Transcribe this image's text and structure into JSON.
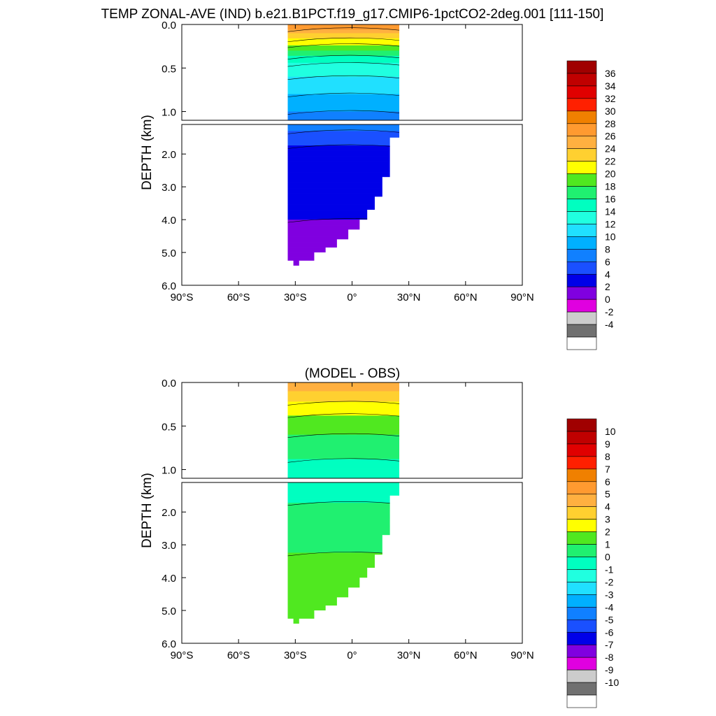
{
  "title": "TEMP ZONAL-AVE (IND) b.e21.B1PCT.f19_g17.CMIP6-1pctCO2-2deg.001 [111-150]",
  "chart_data": [
    {
      "type": "heatmap",
      "title": "TEMP ZONAL-AVE (IND) b.e21.B1PCT.f19_g17.CMIP6-1pctCO2-2deg.001 [111-150]",
      "ylabel": "DEPTH (km)",
      "xlabel": "",
      "x_ticks": [
        "90°S",
        "60°S",
        "30°S",
        "0°",
        "30°N",
        "60°N",
        "90°N"
      ],
      "y_ticks_upper": [
        "0.0",
        "0.5",
        "1.0"
      ],
      "y_ticks_lower": [
        "2.0",
        "3.0",
        "4.0",
        "5.0",
        "6.0"
      ],
      "xlim": [
        -90,
        90
      ],
      "ylim_km": [
        6.0,
        0.0
      ],
      "upper_panel_depth_km": [
        0.0,
        1.1
      ],
      "data_lat_range": [
        -34,
        25
      ],
      "ocean_max_depth_km": 5.4,
      "colorbar_labels": [
        "36",
        "34",
        "32",
        "30",
        "28",
        "26",
        "24",
        "22",
        "20",
        "18",
        "16",
        "14",
        "12",
        "10",
        "8",
        "6",
        "4",
        "2",
        "0",
        "-2",
        "-4"
      ],
      "colorbar_colors": [
        "#a00000",
        "#c00000",
        "#e00000",
        "#ff2000",
        "#f08000",
        "#ff9a30",
        "#ffb040",
        "#ffd030",
        "#ffff00",
        "#50e820",
        "#20f070",
        "#00ffc0",
        "#20ffe0",
        "#20e0ff",
        "#00b0ff",
        "#1080ff",
        "#1a50ff",
        "#0000e8",
        "#8000e0",
        "#e000e0",
        "#cccccc",
        "#707070",
        "#ffffff"
      ],
      "depth_temp_profile": {
        "depth_km": [
          0.0,
          0.05,
          0.1,
          0.2,
          0.3,
          0.4,
          0.5,
          0.7,
          0.9,
          1.1,
          1.5,
          2.0,
          3.0,
          4.0,
          5.0,
          5.4
        ],
        "temp_C": [
          28,
          26,
          24,
          21,
          18,
          15,
          13,
          11,
          9,
          7,
          5,
          3,
          2.5,
          2,
          1.5,
          1.5
        ]
      }
    },
    {
      "type": "heatmap",
      "title": "(MODEL - OBS)",
      "ylabel": "DEPTH (km)",
      "xlabel": "",
      "x_ticks": [
        "90°S",
        "60°S",
        "30°S",
        "0°",
        "30°N",
        "60°N",
        "90°N"
      ],
      "y_ticks_upper": [
        "0.0",
        "0.5",
        "1.0"
      ],
      "y_ticks_lower": [
        "2.0",
        "3.0",
        "4.0",
        "5.0",
        "6.0"
      ],
      "xlim": [
        -90,
        90
      ],
      "ylim_km": [
        6.0,
        0.0
      ],
      "upper_panel_depth_km": [
        0.0,
        1.1
      ],
      "data_lat_range": [
        -34,
        25
      ],
      "ocean_max_depth_km": 5.4,
      "colorbar_labels": [
        "10",
        "9",
        "8",
        "7",
        "6",
        "5",
        "4",
        "3",
        "2",
        "1",
        "0",
        "-1",
        "-2",
        "-3",
        "-4",
        "-5",
        "-6",
        "-7",
        "-8",
        "-9",
        "-10"
      ],
      "colorbar_colors": [
        "#a00000",
        "#c00000",
        "#e00000",
        "#ff2000",
        "#f08000",
        "#ff9a30",
        "#ffb040",
        "#ffd030",
        "#ffff00",
        "#50e820",
        "#20f070",
        "#00ffc0",
        "#20ffe0",
        "#20e0ff",
        "#00b0ff",
        "#1080ff",
        "#1a50ff",
        "#0000e8",
        "#8000e0",
        "#e000e0",
        "#cccccc",
        "#707070",
        "#ffffff"
      ],
      "depth_diff_profile": {
        "depth_km": [
          0.0,
          0.1,
          0.2,
          0.3,
          0.4,
          0.6,
          0.8,
          1.1,
          1.5,
          2.0,
          2.5,
          3.0,
          3.5,
          4.0,
          4.5,
          5.0,
          5.4
        ],
        "diff_C": [
          4.5,
          4.0,
          3.2,
          2.5,
          1.8,
          1.0,
          0.2,
          -0.5,
          -0.3,
          0.4,
          0.6,
          0.8,
          1.2,
          1.4,
          1.6,
          1.7,
          1.7
        ]
      }
    }
  ]
}
